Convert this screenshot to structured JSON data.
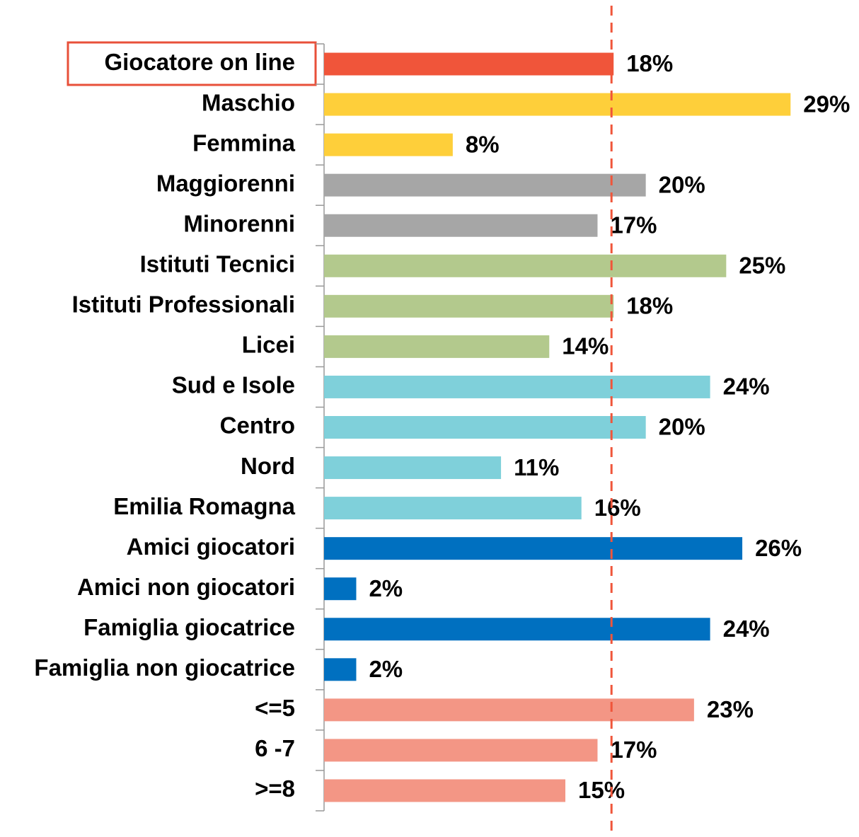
{
  "chart_data": {
    "type": "bar",
    "orientation": "horizontal",
    "categories": [
      "Giocatore on line",
      "Maschio",
      "Femmina",
      "Maggiorenni",
      "Minorenni",
      "Istituti Tecnici",
      "Istituti Professionali",
      "Licei",
      "Sud e Isole",
      "Centro",
      "Nord",
      "Emilia Romagna",
      "Amici giocatori",
      "Amici non giocatori",
      "Famiglia giocatrice",
      "Famiglia non giocatrice",
      "<=5",
      "6 -7",
      ">=8"
    ],
    "values": [
      18,
      29,
      8,
      20,
      17,
      25,
      18,
      14,
      24,
      20,
      11,
      16,
      26,
      2,
      24,
      2,
      23,
      17,
      15
    ],
    "value_labels": [
      "18%",
      "29%",
      "8%",
      "20%",
      "17%",
      "25%",
      "18%",
      "14%",
      "24%",
      "20%",
      "11%",
      "16%",
      "26%",
      "2%",
      "24%",
      "2%",
      "23%",
      "17%",
      "15%"
    ],
    "colors": [
      "#f0553a",
      "#fecf3a",
      "#fecf3a",
      "#a6a6a6",
      "#a6a6a6",
      "#b3c98d",
      "#b3c98d",
      "#b3c98d",
      "#7fd0da",
      "#7fd0da",
      "#7fd0da",
      "#7fd0da",
      "#0070c0",
      "#0070c0",
      "#0070c0",
      "#0070c0",
      "#f39685",
      "#f39685",
      "#f39685"
    ],
    "xlim": [
      0,
      30
    ]
  }
}
